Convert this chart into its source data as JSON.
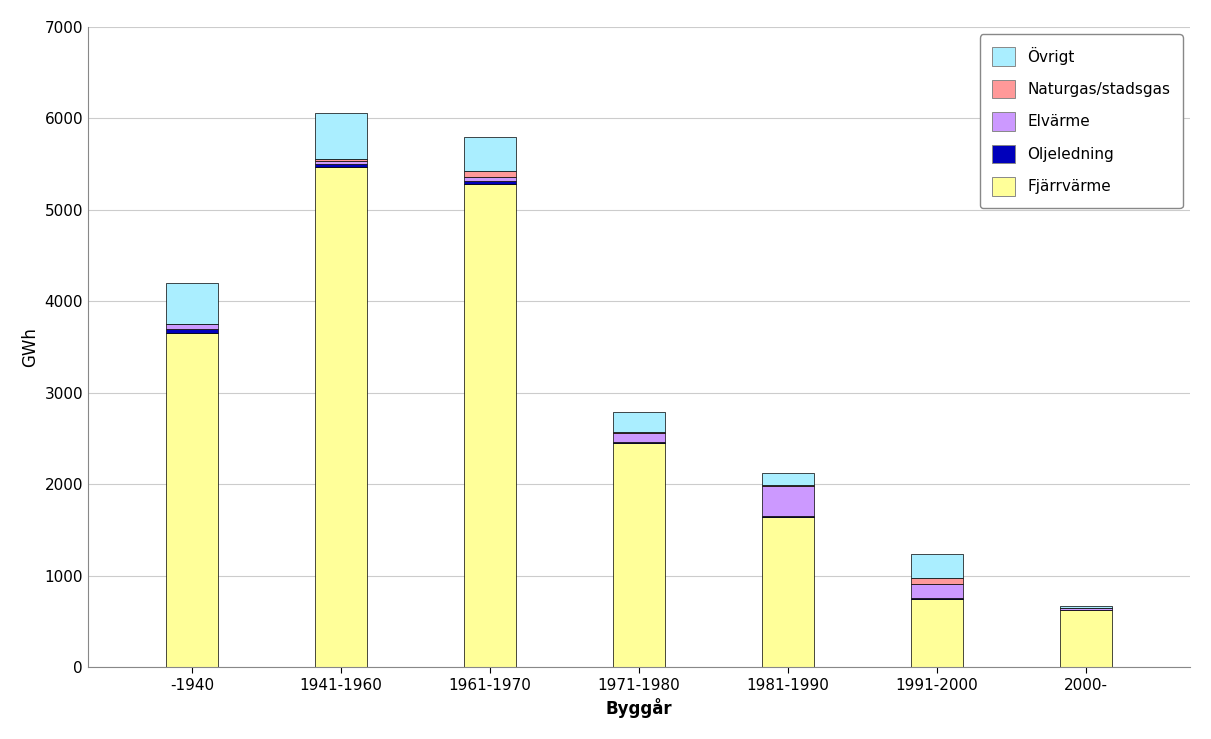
{
  "categories": [
    "-1940",
    "1941-1960",
    "1961-1970",
    "1971-1980",
    "1981-1990",
    "1991-2000",
    "2000-"
  ],
  "series": {
    "Fjärrvärme": [
      3650,
      5470,
      5280,
      2450,
      1640,
      750,
      620
    ],
    "Oljeledning": [
      50,
      30,
      40,
      10,
      10,
      10,
      10
    ],
    "Elvärme": [
      50,
      30,
      40,
      100,
      330,
      150,
      20
    ],
    "Naturgas/stadsgas": [
      0,
      30,
      60,
      10,
      10,
      60,
      0
    ],
    "Övrigt": [
      450,
      500,
      380,
      225,
      130,
      270,
      20
    ]
  },
  "colors": {
    "Fjärrvärme": "#FFFF99",
    "Oljeledning": "#0000BB",
    "Elvärme": "#CC99FF",
    "Naturgas/stadsgas": "#FF9999",
    "Övrigt": "#AAEEFF"
  },
  "ylabel": "GWh",
  "xlabel": "Byggår",
  "ylim": [
    0,
    7000
  ],
  "yticks": [
    0,
    1000,
    2000,
    3000,
    4000,
    5000,
    6000,
    7000
  ],
  "legend_order": [
    "Övrigt",
    "Naturgas/stadsgas",
    "Elvärme",
    "Oljeledning",
    "Fjärrvärme"
  ],
  "bar_edge_color": "#000000",
  "bar_width": 0.35,
  "background_color": "#FFFFFF",
  "grid_color": "#CCCCCC"
}
